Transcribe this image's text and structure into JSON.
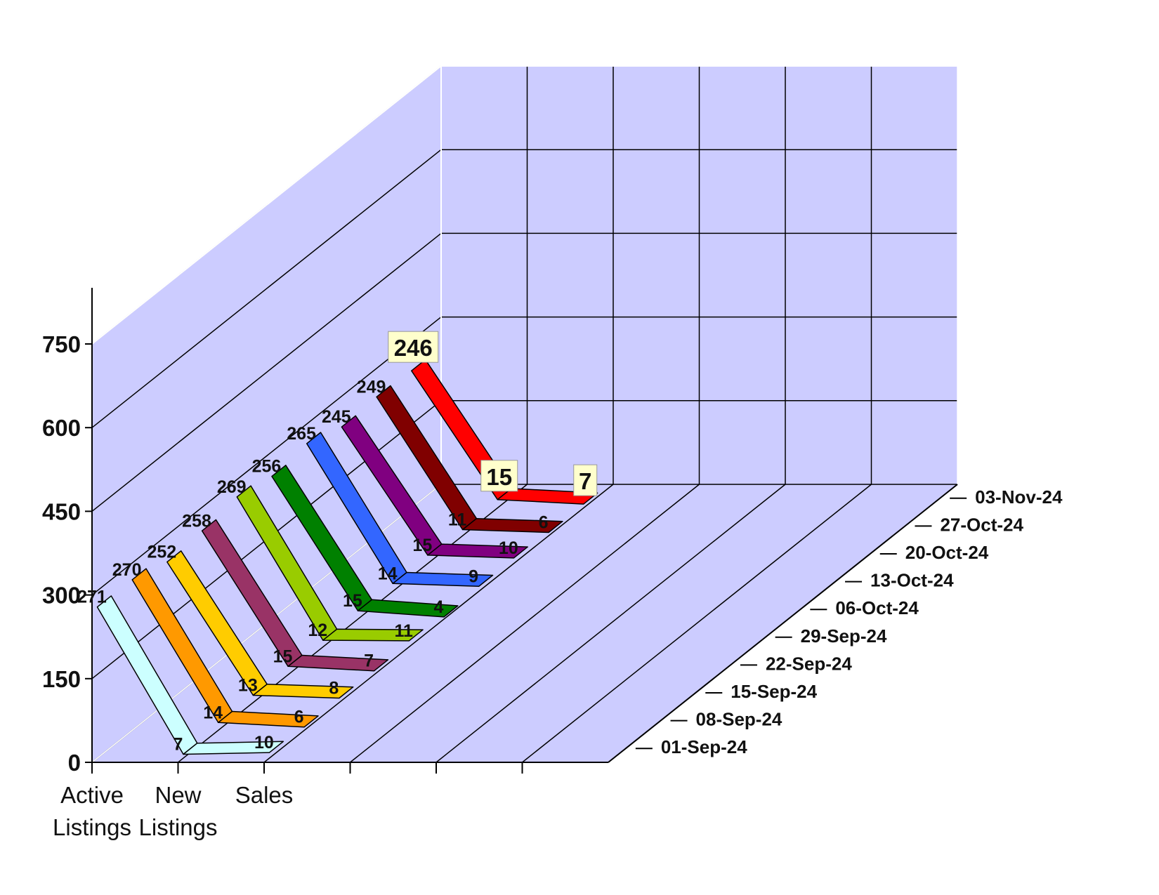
{
  "chart_data": {
    "type": "line",
    "variant": "3d-ribbon",
    "categories": [
      "Active Listings",
      "New Listings",
      "Sales"
    ],
    "category_tick_lines": [
      [
        "Active",
        "Listings"
      ],
      [
        "New",
        "Listings"
      ],
      [
        "Sales",
        ""
      ]
    ],
    "y_ticks": [
      "0",
      "150",
      "300",
      "450",
      "600",
      "750"
    ],
    "ylim": [
      0,
      750
    ],
    "grid": true,
    "series": [
      {
        "name": "01-Sep-24",
        "values": [
          271,
          7,
          10
        ],
        "labels": [
          "271",
          "7",
          "10"
        ],
        "color": "#ccffff"
      },
      {
        "name": "08-Sep-24",
        "values": [
          270,
          14,
          6
        ],
        "labels": [
          "270",
          "14",
          "6"
        ],
        "color": "#ff9900"
      },
      {
        "name": "15-Sep-24",
        "values": [
          252,
          13,
          8
        ],
        "labels": [
          "252",
          "13",
          "8"
        ],
        "color": "#ffcc00"
      },
      {
        "name": "22-Sep-24",
        "values": [
          258,
          15,
          7
        ],
        "labels": [
          "258",
          "15",
          "7"
        ],
        "color": "#993366"
      },
      {
        "name": "29-Sep-24",
        "values": [
          269,
          12,
          11
        ],
        "labels": [
          "269",
          "12",
          "11"
        ],
        "color": "#99cc00"
      },
      {
        "name": "06-Oct-24",
        "values": [
          256,
          15,
          4
        ],
        "labels": [
          "256",
          "15",
          "4"
        ],
        "color": "#008000"
      },
      {
        "name": "13-Oct-24",
        "values": [
          265,
          14,
          9
        ],
        "labels": [
          "265",
          "14",
          "9"
        ],
        "color": "#3366ff"
      },
      {
        "name": "20-Oct-24",
        "values": [
          245,
          15,
          10
        ],
        "labels": [
          "245",
          "15",
          "10"
        ],
        "color": "#800080"
      },
      {
        "name": "27-Oct-24",
        "values": [
          249,
          11,
          6
        ],
        "labels": [
          "249",
          "11",
          "6"
        ],
        "color": "#800000"
      },
      {
        "name": "03-Nov-24",
        "values": [
          246,
          15,
          7
        ],
        "labels": [
          "246",
          "15",
          "7"
        ],
        "color": "#ff0000"
      }
    ],
    "colors": {
      "wall": "#ccccff",
      "grid_dark": "#000000",
      "grid_light": "#ffffff",
      "highlight_label_bg": "#ffffcc"
    }
  }
}
